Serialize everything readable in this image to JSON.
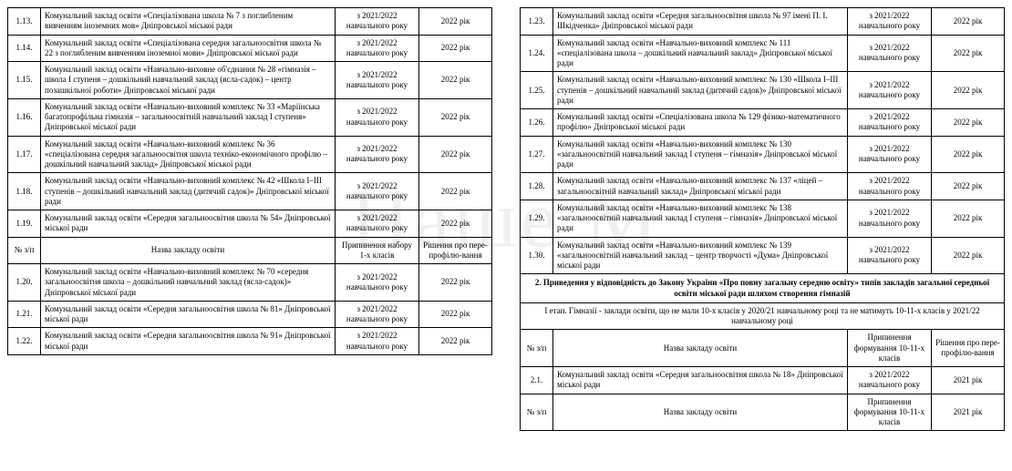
{
  "watermark_text": "Наше М",
  "colors": {
    "border": "#000000",
    "bg": "#ffffff",
    "text": "#000000",
    "watermark": "rgba(0,0,0,0.06)"
  },
  "left": {
    "rows_a": [
      {
        "n": "1.13.",
        "name": "Комунальний заклад освіти «Спеціалізована школа  № 7 з поглибленим вивченням іноземних мов» Дніпровської міської ради",
        "c3": "з 2021/2022 навчального року",
        "c4": "2022 рік"
      },
      {
        "n": "1.14.",
        "name": "Комунальний заклад освіти «Спеціалізована середня загальноосвітня школа № 22 з поглибленим вивченням іноземної мови» Дніпровської міської ради",
        "c3": "з 2021/2022 навчального року",
        "c4": "2022 рік"
      },
      {
        "n": "1.15.",
        "name": "Комунальний заклад освіти «Навчально-виховне об'єднання № 28 «гімназія – школа І ступеня – дошкільний навчальний заклад (ясла-садок) – центр позашкільної роботи» Дніпровської міської ради",
        "c3": "з 2021/2022 навчального року",
        "c4": "2022 рік"
      },
      {
        "n": "1.16.",
        "name": "Комунальний заклад освіти «Навчально-виховний комплекс № 33 «Маріїнська багатопрофільна гімназія – загальноосвітній навчальний заклад І ступеня» Дніпровської міської ради",
        "c3": "з 2021/2022 навчального року",
        "c4": "2022 рік"
      },
      {
        "n": "1.17.",
        "name": "Комунальний заклад освіти «Навчально-виховний комплекс № 36 «спеціалізована середня загальноосвітня школа техніко-економічного профілю – дошкільний навчальний заклад» Дніпровської міської ради",
        "c3": "з 2021/2022 навчального року",
        "c4": "2022 рік"
      },
      {
        "n": "1.18.",
        "name": "Комунальний заклад освіти «Навчально-виховний комплекс № 42 «Школа І–ІІІ ступенів – дошкільний навчальний заклад (дитячий садок)» Дніпровської міської ради",
        "c3": "з 2021/2022 навчального року",
        "c4": "2022 рік"
      },
      {
        "n": "1.19.",
        "name": "Комунальний заклад освіти «Середня загальноосвітня школа № 54» Дніпровської міської ради",
        "c3": "з 2021/2022 навчального року",
        "c4": "2022 рік"
      }
    ],
    "header": {
      "n": "№ з/п",
      "name": "Назва закладу освіти",
      "c3": "Припинення набору 1-х класів",
      "c4": "Рішення про пере-профілю-вання"
    },
    "rows_b": [
      {
        "n": "1.20.",
        "name": "Комунальний заклад освіти «Навчально-виховний комплекс № 70 «середня загальноосвітня школа – дошкільний навчальний заклад (ясла-садок)» Дніпровської міської ради",
        "c3": "з 2021/2022 навчального року",
        "c4": "2022 рік"
      },
      {
        "n": "1.21.",
        "name": "Комунальний заклад освіти «Середня загальноосвітня школа № 81» Дніпровської міської ради",
        "c3": "з 2021/2022 навчального року",
        "c4": "2022 рік"
      },
      {
        "n": "1.22.",
        "name": "Комунальний заклад освіти «Середня загальноосвітня школа № 91» Дніпровської міської ради",
        "c3": "з 2021/2022 навчального року",
        "c4": "2022 рік"
      }
    ]
  },
  "right": {
    "rows_a": [
      {
        "n": "1.23.",
        "name": "Комунальний заклад освіти «Середня загальноосвітня школа № 97 імені П. І. Шкідченка» Дніпровської міської ради",
        "c3": "з 2021/2022 навчального року",
        "c4": "2022 рік"
      },
      {
        "n": "1.24.",
        "name": "Комунальний заклад освіти «Навчально-виховний комплекс № 111 «спеціалізована школа – дошкільний навчальний заклад» Дніпровської міської ради",
        "c3": "з 2021/2022 навчального року",
        "c4": "2022 рік"
      },
      {
        "n": "1.25.",
        "name": "Комунальний заклад освіти «Навчально-виховний комплекс № 130 «Школа І–ІІІ ступенів – дошкільний навчальний заклад (дитячий садок)» Дніпровської міської ради",
        "c3": "з 2021/2022 навчального року",
        "c4": "2022 рік"
      },
      {
        "n": "1.26.",
        "name": "Комунальний заклад освіти «Спеціалізована школа  № 129 фізико-математичного профілю» Дніпровської міської ради",
        "c3": "з 2021/2022 навчального року",
        "c4": "2022 рік"
      },
      {
        "n": "1.27.",
        "name": "Комунальний заклад освіти «Навчально-виховний комплекс № 130 «загальноосвітній навчальний заклад І ступеня – гімназія» Дніпровської міської ради",
        "c3": "з 2021/2022 навчального року",
        "c4": "2022 рік"
      },
      {
        "n": "1.28.",
        "name": "Комунальний заклад освіти «Навчально-виховний комплекс № 137 «ліцей – загальноосвітній навчальний заклад» Дніпровської міської ради",
        "c3": "з 2021/2022 навчального року",
        "c4": "2022 рік"
      },
      {
        "n": "1.29.",
        "name": "Комунальний заклад освіти «Навчально-виховний комплекс № 138 «загальноосвітній навчальний заклад І ступеня – гімназія» Дніпровської міської ради",
        "c3": "з 2021/2022 навчального року",
        "c4": "2022 рік"
      },
      {
        "n": "1.30.",
        "name": "Комунальний заклад освіти «Навчально-виховний комплекс № 139 «загальноосвітній навчальний заклад – центр творчості «Дума» Дніпровської міської ради",
        "c3": "з 2021/2022 навчального року",
        "c4": "2022 рік"
      }
    ],
    "section_title": "2. Приведення у відповідність до Закону України «Про повну загальну середню освіту» типів закладів загальної середньої освіти міської ради шляхом створення гімназій",
    "section_sub": "І етап. Гімназії - заклади освіти, що не мали 10-х класів у 2020/21 навчальному році та не матимуть 10-11-х класів у 2021/22 навчальному році",
    "header2": {
      "n": "№ з/п",
      "name": "Назва закладу освіти",
      "c3": "Припинення формування 10-11-х класів",
      "c4": "Рішення про пере-профілю-вання"
    },
    "rows_b": [
      {
        "n": "2.1.",
        "name": "Комунальний заклад освіти «Середня загальноосвітня школа № 18» Дніпровської міської ради",
        "c3": "з 2021/2022 навчального року",
        "c4": "2021 рік"
      }
    ],
    "header3": {
      "n": "№ з/п",
      "name": "Назва закладу освіти",
      "c3": "Припинення формування 10-11-х класів",
      "c4": "2021 рік"
    }
  }
}
